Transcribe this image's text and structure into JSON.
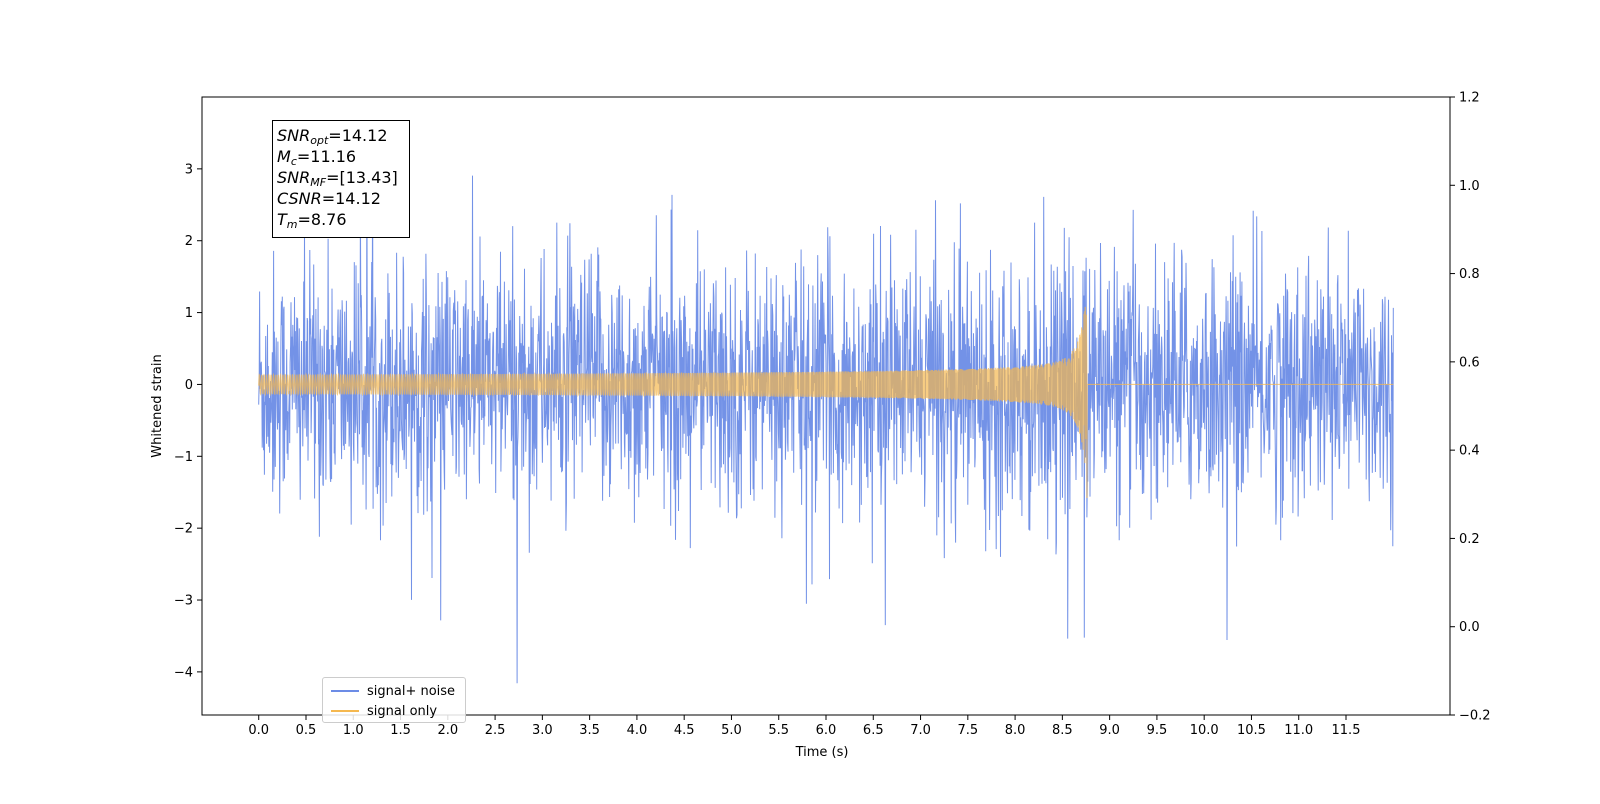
{
  "chart_data": {
    "type": "line",
    "xlabel": "Time (s)",
    "ylabel": "Whitened strain",
    "xlim": [
      -0.6,
      12.6
    ],
    "ylim": [
      -4.6,
      4.0
    ],
    "y2lim": [
      -0.2,
      1.2
    ],
    "x_ticks": [
      "0.0",
      "0.5",
      "1.0",
      "1.5",
      "2.0",
      "2.5",
      "3.0",
      "3.5",
      "4.0",
      "4.5",
      "5.0",
      "5.5",
      "6.0",
      "6.5",
      "7.0",
      "7.5",
      "8.0",
      "8.5",
      "9.0",
      "9.5",
      "10.0",
      "10.5",
      "11.0",
      "11.5"
    ],
    "y_ticks": [
      "3",
      "2",
      "1",
      "0",
      "−1",
      "−2",
      "−3",
      "−4"
    ],
    "y_tick_values": [
      3,
      2,
      1,
      0,
      -1,
      -2,
      -3,
      -4
    ],
    "y2_ticks": [
      "1.2",
      "1.0",
      "0.8",
      "0.6",
      "0.4",
      "0.2",
      "0.0",
      "−0.2"
    ],
    "y2_tick_values": [
      1.2,
      1.0,
      0.8,
      0.6,
      0.4,
      0.2,
      0.0,
      -0.2
    ],
    "series": [
      {
        "name": "signal+ noise",
        "color": "#6c8ce6",
        "x_range": [
          0.0,
          12.0
        ],
        "typical_amplitude": [
          -2.4,
          2.4
        ],
        "peak_max": 3.6,
        "peak_min": -4.2
      },
      {
        "name": "signal only",
        "color": "#f5b84f",
        "merger_time": 8.76,
        "peak_amplitude": 1.8,
        "x_range": [
          0.0,
          12.0
        ]
      }
    ],
    "annotation": {
      "snr_opt": "=14.12",
      "mc": "=11.16",
      "snr_mf": "=[13.43]",
      "csnr": "=14.12",
      "tm": "=8.76"
    },
    "legend": {
      "location": "lower-left",
      "items": [
        "signal+ noise",
        "signal only"
      ]
    },
    "grid": false
  }
}
